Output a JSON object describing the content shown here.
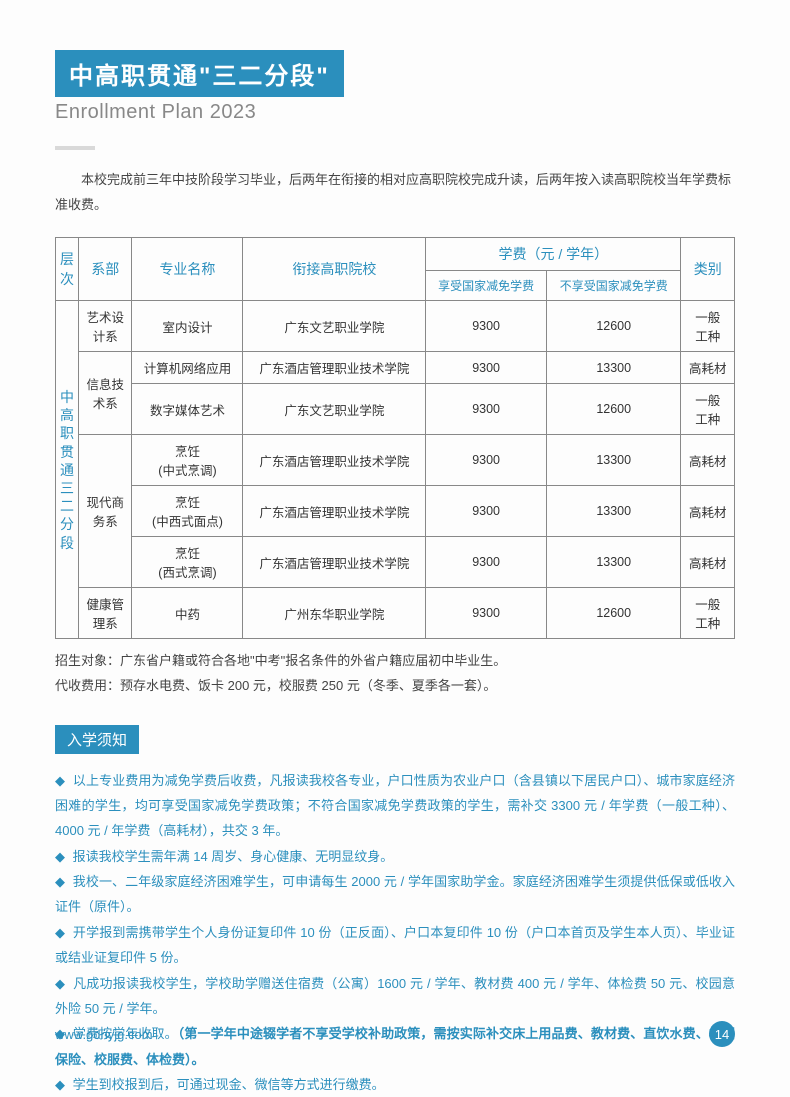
{
  "header": {
    "title_cn": "中高职贯通\"三二分段\"",
    "title_en": "Enrollment Plan 2023"
  },
  "intro": "本校完成前三年中技阶段学习毕业，后两年在衔接的相对应高职院校完成升读，后两年按入读高职院校当年学费标准收费。",
  "table": {
    "headers": {
      "level": "层次",
      "dept": "系部",
      "major": "专业名称",
      "college": "衔接高职院校",
      "fee": "学费（元 / 学年）",
      "fee_sub1": "享受国家减免学费",
      "fee_sub2": "不享受国家减免学费",
      "category": "类别"
    },
    "level_label": "中高职贯通三二分段",
    "groups": [
      {
        "dept": "艺术设计系",
        "rows": [
          {
            "major": "室内设计",
            "college": "广东文艺职业学院",
            "fee1": "9300",
            "fee2": "12600",
            "cat": "一般工种"
          }
        ]
      },
      {
        "dept": "信息技术系",
        "rows": [
          {
            "major": "计算机网络应用",
            "college": "广东酒店管理职业技术学院",
            "fee1": "9300",
            "fee2": "13300",
            "cat": "高耗材"
          },
          {
            "major": "数字媒体艺术",
            "college": "广东文艺职业学院",
            "fee1": "9300",
            "fee2": "12600",
            "cat": "一般工种"
          }
        ]
      },
      {
        "dept": "现代商务系",
        "rows": [
          {
            "major": "烹饪(中式烹调)",
            "college": "广东酒店管理职业技术学院",
            "fee1": "9300",
            "fee2": "13300",
            "cat": "高耗材"
          },
          {
            "major": "烹饪(中西式面点)",
            "college": "广东酒店管理职业技术学院",
            "fee1": "9300",
            "fee2": "13300",
            "cat": "高耗材"
          },
          {
            "major": "烹饪(西式烹调)",
            "college": "广东酒店管理职业技术学院",
            "fee1": "9300",
            "fee2": "13300",
            "cat": "高耗材"
          }
        ]
      },
      {
        "dept": "健康管理系",
        "rows": [
          {
            "major": "中药",
            "college": "广州东华职业学院",
            "fee1": "9300",
            "fee2": "12600",
            "cat": "一般工种"
          }
        ]
      }
    ]
  },
  "post_table_notes": [
    "招生对象：广东省户籍或符合各地\"中考\"报名条件的外省户籍应届初中毕业生。",
    "代收费用：预存水电费、饭卡 200 元，校服费 250 元（冬季、夏季各一套）。"
  ],
  "notice_title": "入学须知",
  "notices": [
    "以上专业费用为减免学费后收费，凡报读我校各专业，户口性质为农业户口（含县镇以下居民户口）、城市家庭经济困难的学生，均可享受国家减免学费政策；不符合国家减免学费政策的学生，需补交 3300 元 / 年学费（一般工种）、4000 元 / 年学费（高耗材），共交 3 年。",
    "报读我校学生需年满 14 周岁、身心健康、无明显纹身。",
    "我校一、二年级家庭经济困难学生，可申请每生 2000 元 / 学年国家助学金。家庭经济困难学生须提供低保或低收入证件（原件）。",
    "开学报到需携带学生个人身份证复印件 10 份（正反面）、户口本复印件 10 份（户口本首页及学生本人页）、毕业证或结业证复印件 5 份。",
    "凡成功报读我校学生，学校助学赠送住宿费（公寓）1600 元 / 学年、教材费 400 元 / 学年、体检费 50 元、校园意外险 50 元 / 学年。",
    "学费按学年收取。",
    "学生到校报到后，可通过现金、微信等方式进行缴费。"
  ],
  "notice_bold_suffix": "（第一学年中途辍学者不享受学校补助政策，需按实际补交床上用品费、教材费、直饮水费、校园保险、校服费、体检费）。",
  "footer": {
    "url": "www.gdnyjg.com",
    "page": "14"
  },
  "colors": {
    "brand": "#2b8fbd",
    "text": "#333",
    "muted": "#888"
  }
}
